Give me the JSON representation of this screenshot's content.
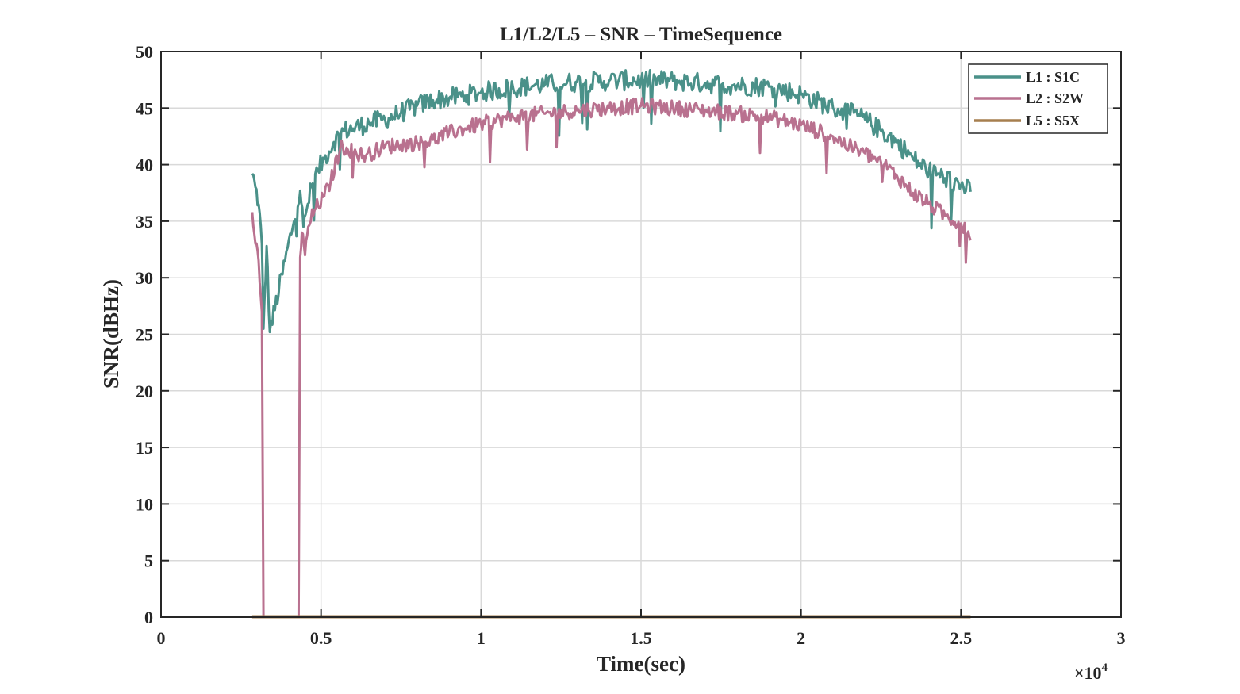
{
  "chart_data": {
    "type": "line",
    "title": "L1/L2/L5 – SNR – TimeSequence",
    "xlabel": "Time(sec)",
    "ylabel": "SNR(dBHz)",
    "x_exponent_label": "×10",
    "x_exponent_power": "4",
    "xlim": [
      0,
      30000
    ],
    "ylim": [
      0,
      50
    ],
    "x_ticks": [
      0,
      5000,
      10000,
      15000,
      20000,
      25000,
      30000
    ],
    "x_tick_labels": [
      "0",
      "0.5",
      "1",
      "1.5",
      "2",
      "2.5",
      "3"
    ],
    "y_ticks": [
      0,
      5,
      10,
      15,
      20,
      25,
      30,
      35,
      40,
      45,
      50
    ],
    "y_tick_labels": [
      "0",
      "5",
      "10",
      "15",
      "20",
      "25",
      "30",
      "35",
      "40",
      "45",
      "50"
    ],
    "grid": true,
    "legend_position": "top-right",
    "series": [
      {
        "name": "L1 : S1C",
        "color": "#4a9189",
        "noise": 0.9,
        "points": [
          [
            2850,
            39.2
          ],
          [
            2950,
            38.0
          ],
          [
            3050,
            36.5
          ],
          [
            3150,
            33.0
          ],
          [
            3200,
            25.5
          ],
          [
            3300,
            32.8
          ],
          [
            3400,
            25.2
          ],
          [
            4350,
            37.7
          ],
          [
            4450,
            34.5
          ],
          [
            4550,
            36.0
          ],
          [
            4700,
            38.0
          ],
          [
            4900,
            39.5
          ],
          [
            5100,
            40.5
          ],
          [
            5400,
            42.0
          ],
          [
            5700,
            43.0
          ],
          [
            6000,
            43.2
          ],
          [
            6500,
            43.7
          ],
          [
            7000,
            44.0
          ],
          [
            7500,
            44.6
          ],
          [
            8000,
            45.2
          ],
          [
            8500,
            45.7
          ],
          [
            9000,
            45.9
          ],
          [
            9500,
            46.1
          ],
          [
            10000,
            46.4
          ],
          [
            11000,
            46.8
          ],
          [
            12000,
            47.1
          ],
          [
            13000,
            47.3
          ],
          [
            14000,
            47.4
          ],
          [
            15000,
            47.5
          ],
          [
            16000,
            47.4
          ],
          [
            17000,
            47.2
          ],
          [
            18000,
            47.0
          ],
          [
            19000,
            46.9
          ],
          [
            20000,
            46.2
          ],
          [
            21000,
            45.0
          ],
          [
            21500,
            44.6
          ],
          [
            22000,
            44.0
          ],
          [
            22500,
            43.0
          ],
          [
            23000,
            42.0
          ],
          [
            23500,
            40.5
          ],
          [
            24000,
            39.5
          ],
          [
            24500,
            38.8
          ],
          [
            25000,
            38.2
          ],
          [
            25300,
            37.6
          ]
        ]
      },
      {
        "name": "L2 : S2W",
        "color": "#b9718f",
        "noise": 0.7,
        "points": [
          [
            2850,
            35.8
          ],
          [
            2950,
            33.0
          ],
          [
            3050,
            31.5
          ],
          [
            3150,
            27.0
          ],
          [
            3200,
            0
          ],
          [
            3250,
            0
          ],
          [
            4300,
            0
          ],
          [
            4350,
            31.8
          ],
          [
            4400,
            34.0
          ],
          [
            4500,
            32.0
          ],
          [
            4600,
            34.5
          ],
          [
            4800,
            36.0
          ],
          [
            5100,
            37.2
          ],
          [
            5300,
            38.5
          ],
          [
            5600,
            41.5
          ],
          [
            5800,
            41.5
          ],
          [
            6100,
            41.0
          ],
          [
            6400,
            40.8
          ],
          [
            6700,
            41.2
          ],
          [
            7000,
            41.6
          ],
          [
            7500,
            41.8
          ],
          [
            8000,
            41.9
          ],
          [
            8500,
            42.2
          ],
          [
            9000,
            42.8
          ],
          [
            9500,
            43.2
          ],
          [
            10000,
            43.6
          ],
          [
            11000,
            44.2
          ],
          [
            12000,
            44.5
          ],
          [
            13000,
            44.8
          ],
          [
            14000,
            45.0
          ],
          [
            15000,
            45.2
          ],
          [
            16000,
            45.0
          ],
          [
            17000,
            44.8
          ],
          [
            18000,
            44.5
          ],
          [
            19000,
            44.2
          ],
          [
            20000,
            43.5
          ],
          [
            21000,
            42.5
          ],
          [
            21500,
            41.6
          ],
          [
            22000,
            41.0
          ],
          [
            22500,
            40.2
          ],
          [
            23000,
            39.0
          ],
          [
            23500,
            37.5
          ],
          [
            24000,
            36.5
          ],
          [
            24500,
            35.5
          ],
          [
            25000,
            34.8
          ],
          [
            25300,
            33.3
          ]
        ]
      },
      {
        "name": "L5 : S5X",
        "color": "#a67f4f",
        "noise": 0,
        "points": [
          [
            2850,
            0
          ],
          [
            25300,
            0
          ]
        ]
      }
    ]
  }
}
